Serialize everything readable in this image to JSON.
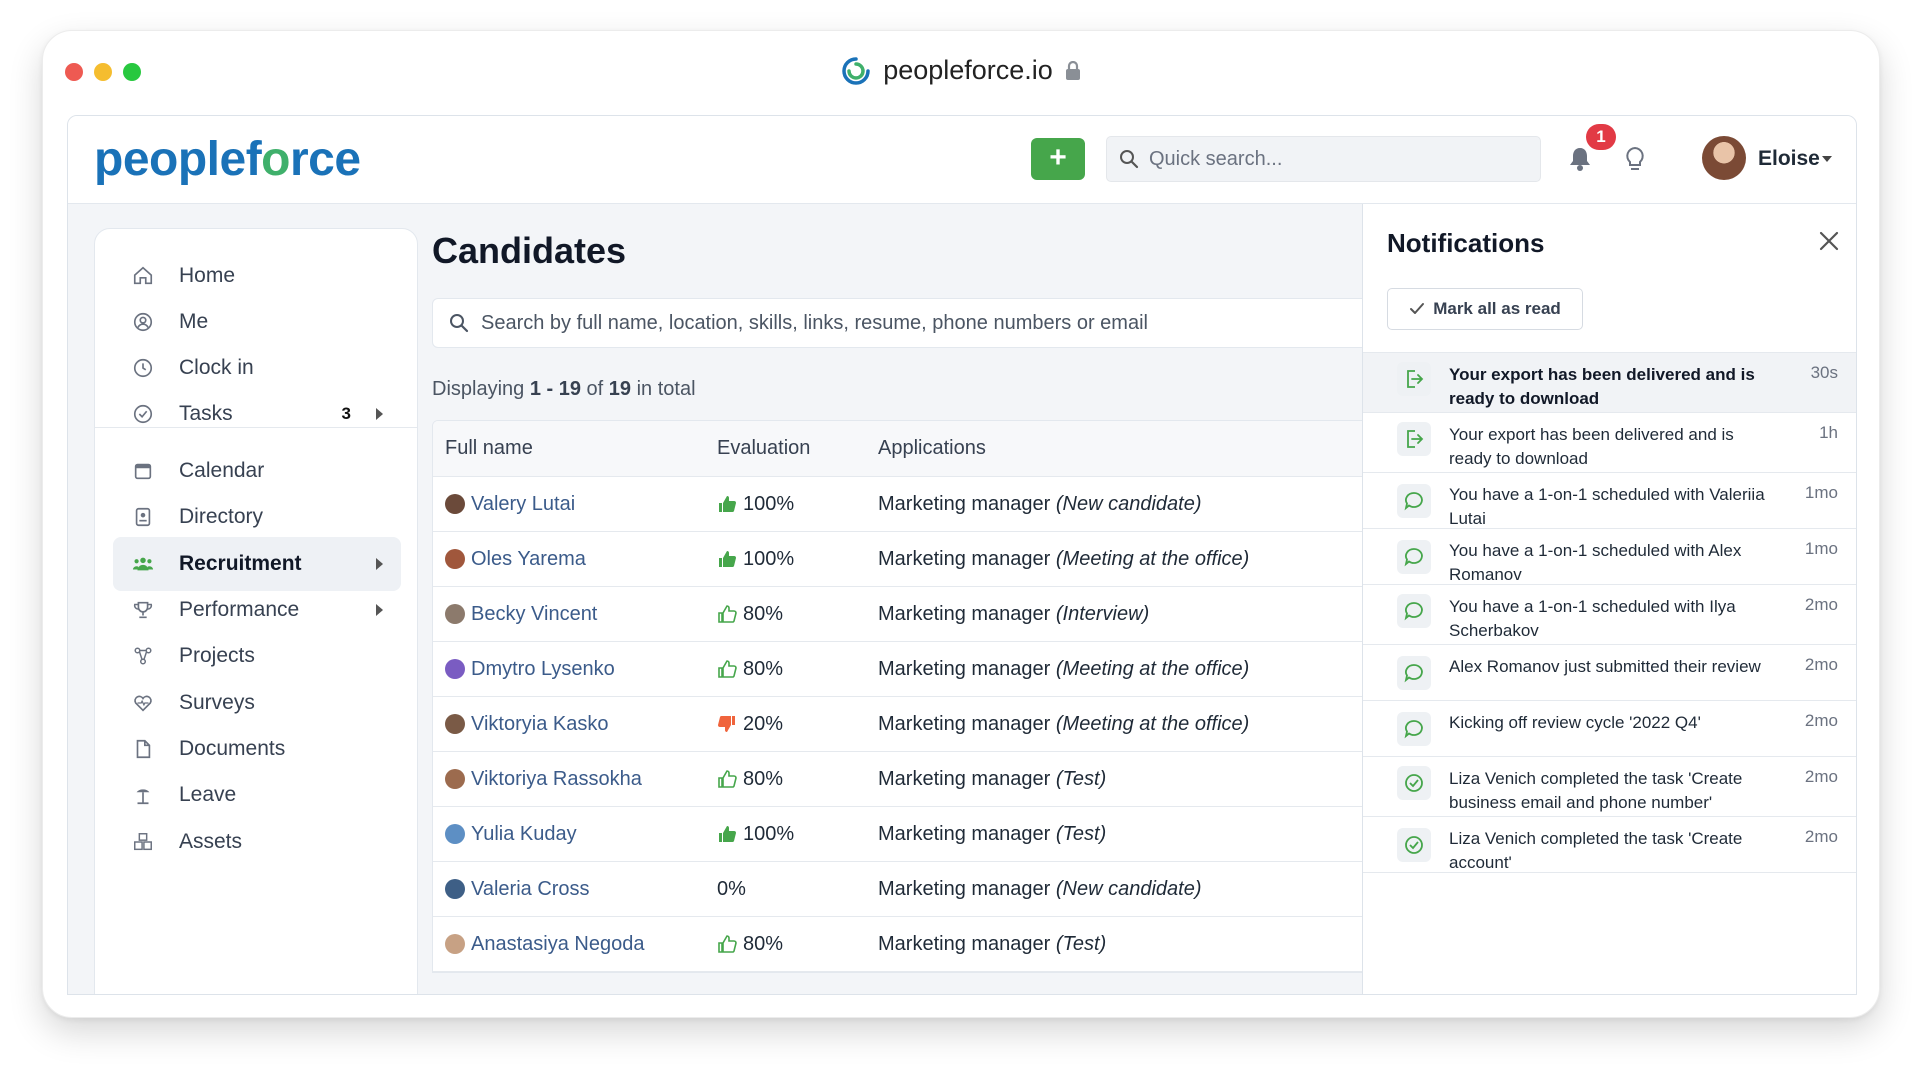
{
  "browser": {
    "url": "peopleforce.io"
  },
  "topbar": {
    "brand_prefix": "peoplef",
    "brand_o": "o",
    "brand_suffix": "rce",
    "add_label": "+",
    "search_placeholder": "Quick search...",
    "notification_count": "1",
    "user_name": "Eloise"
  },
  "sidebar": {
    "items": [
      {
        "label": "Home",
        "icon": "home-icon"
      },
      {
        "label": "Me",
        "icon": "user-circle-icon"
      },
      {
        "label": "Clock in",
        "icon": "clock-icon"
      },
      {
        "label": "Tasks",
        "icon": "check-circle-icon",
        "count": "3"
      },
      {
        "label": "Calendar",
        "icon": "calendar-icon"
      },
      {
        "label": "Directory",
        "icon": "directory-icon"
      },
      {
        "label": "Recruitment",
        "icon": "people-icon"
      },
      {
        "label": "Performance",
        "icon": "trophy-icon"
      },
      {
        "label": "Projects",
        "icon": "projects-icon"
      },
      {
        "label": "Surveys",
        "icon": "heart-pulse-icon"
      },
      {
        "label": "Documents",
        "icon": "document-icon"
      },
      {
        "label": "Leave",
        "icon": "beach-icon"
      },
      {
        "label": "Assets",
        "icon": "boxes-icon"
      }
    ],
    "active": "Recruitment"
  },
  "main": {
    "title": "Candidates",
    "search_placeholder": "Search by full name, location, skills, links, resume, phone numbers or email",
    "displaying": {
      "prefix": "Displaying",
      "range": "1 - 19",
      "of": "of",
      "total": "19",
      "suffix": "in total"
    },
    "columns": [
      "Full name",
      "Evaluation",
      "Applications"
    ],
    "rows": [
      {
        "name": "Valery Lutai",
        "eval": "100%",
        "thumb": "up-solid",
        "job": "Marketing manager",
        "stage": "(New candidate)",
        "avatar": "#6b4a3a"
      },
      {
        "name": "Oles Yarema",
        "eval": "100%",
        "thumb": "up-solid",
        "job": "Marketing manager",
        "stage": "(Meeting at the office)",
        "avatar": "#a0573c"
      },
      {
        "name": "Becky Vincent",
        "eval": "80%",
        "thumb": "up-outline",
        "job": "Marketing manager",
        "stage": "(Interview)",
        "avatar": "#8c7a6c"
      },
      {
        "name": "Dmytro Lysenko",
        "eval": "80%",
        "thumb": "up-outline",
        "job": "Marketing manager",
        "stage": "(Meeting at the office)",
        "avatar": "#7a5cc2"
      },
      {
        "name": "Viktoryia Kasko",
        "eval": "20%",
        "thumb": "down-solid",
        "job": "Marketing manager",
        "stage": "(Meeting at the office)",
        "avatar": "#7a5a46"
      },
      {
        "name": "Viktoriya Rassokha",
        "eval": "80%",
        "thumb": "up-outline",
        "job": "Marketing manager",
        "stage": "(Test)",
        "avatar": "#9c6b4e"
      },
      {
        "name": "Yulia Kuday",
        "eval": "100%",
        "thumb": "up-solid",
        "job": "Marketing manager",
        "stage": "(Test)",
        "avatar": "#5d8fc4"
      },
      {
        "name": "Valeria Cross",
        "eval": "0%",
        "thumb": "none",
        "job": "Marketing manager",
        "stage": "(New candidate)",
        "avatar": "#3e5f86"
      },
      {
        "name": "Anastasiya Negoda",
        "eval": "80%",
        "thumb": "up-outline",
        "job": "Marketing manager",
        "stage": "(Test)",
        "avatar": "#c7a184"
      }
    ]
  },
  "notifications": {
    "title": "Notifications",
    "mark_all": "Mark all as read",
    "items": [
      {
        "text": "Your export has been delivered and is ready to download",
        "time": "30s",
        "icon": "export-icon",
        "unread": true
      },
      {
        "text": "Your export has been delivered and is ready to download",
        "time": "1h",
        "icon": "export-icon",
        "unread": false
      },
      {
        "text": "You have a 1-on-1 scheduled with Valeriia Lutai",
        "time": "1mo",
        "icon": "chat-icon",
        "unread": false
      },
      {
        "text": "You have a 1-on-1 scheduled with Alex Romanov",
        "time": "1mo",
        "icon": "chat-icon",
        "unread": false
      },
      {
        "text": "You have a 1-on-1 scheduled with Ilya Scherbakov",
        "time": "2mo",
        "icon": "chat-icon",
        "unread": false
      },
      {
        "text": "Alex Romanov just submitted their review",
        "time": "2mo",
        "icon": "chat-icon",
        "unread": false
      },
      {
        "text": "Kicking off review cycle '2022 Q4'",
        "time": "2mo",
        "icon": "chat-icon",
        "unread": false
      },
      {
        "text": "Liza Venich completed the task 'Create business email and phone number'",
        "time": "2mo",
        "icon": "check-circle-icon",
        "unread": false
      },
      {
        "text": "Liza Venich completed the task 'Create account'",
        "time": "2mo",
        "icon": "check-circle-icon",
        "unread": false
      }
    ]
  },
  "colors": {
    "brand_blue": "#1a72b8",
    "brand_green": "#3fb06b",
    "success": "#46a64b",
    "danger": "#e23a45",
    "thumb_down": "#f0643c"
  }
}
